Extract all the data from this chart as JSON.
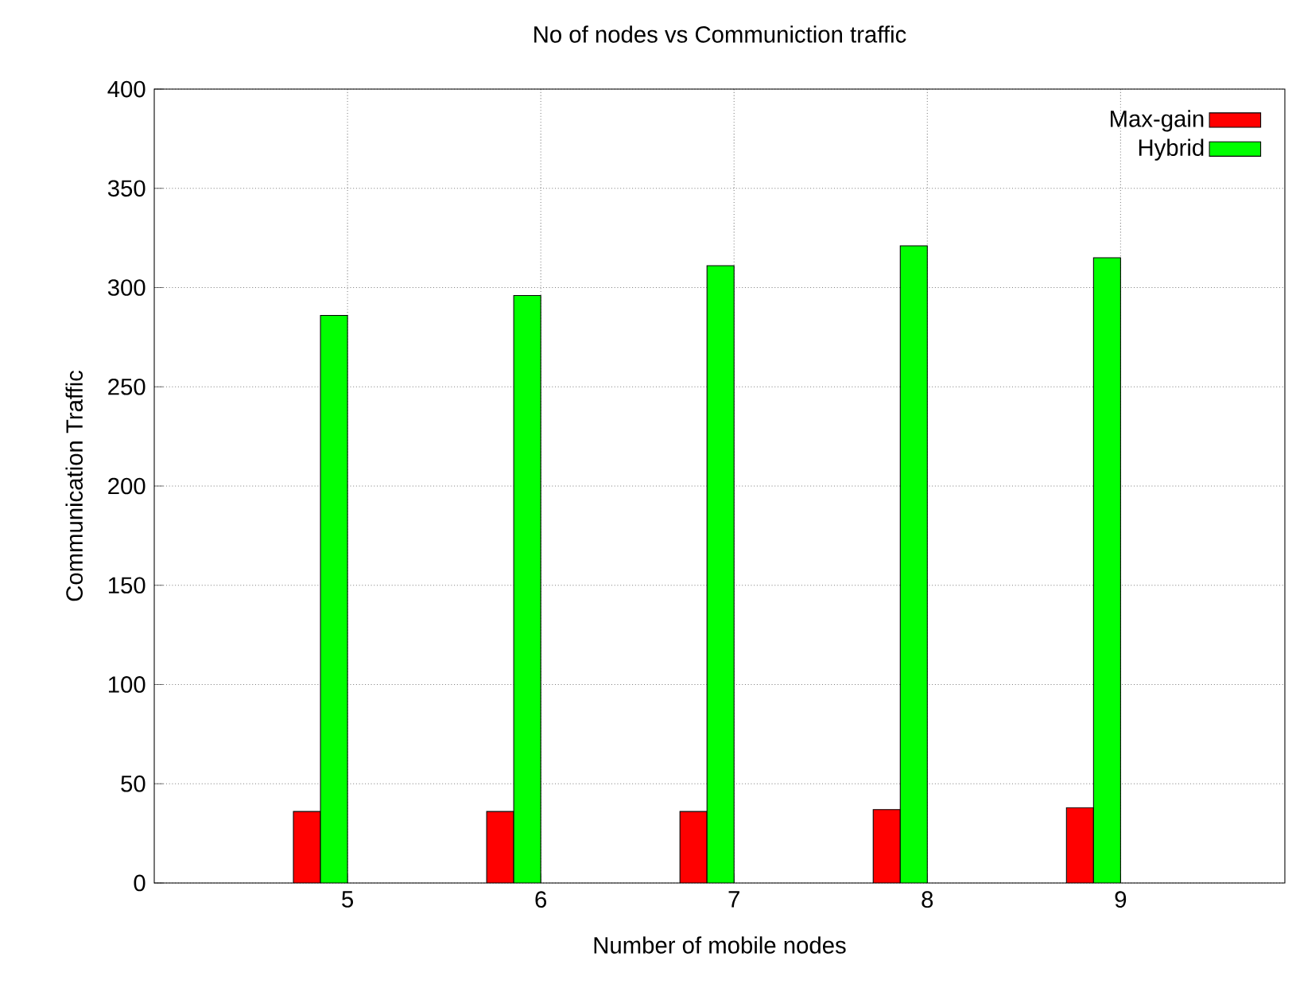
{
  "chart_data": {
    "type": "bar",
    "title": "No of nodes vs Communiction traffic",
    "xlabel": "Number of mobile nodes",
    "ylabel": "Communication Traffic",
    "x": [
      5,
      6,
      7,
      8,
      9
    ],
    "series": [
      {
        "name": "Max-gain",
        "color": "#ff0000",
        "values": [
          36,
          36,
          36,
          37,
          38
        ]
      },
      {
        "name": "Hybrid",
        "color": "#00ff00",
        "values": [
          286,
          296,
          311,
          321,
          315
        ]
      }
    ],
    "xlim": [
      4,
      9.85
    ],
    "xticks": [
      5,
      6,
      7,
      8,
      9
    ],
    "ylim": [
      0,
      400
    ],
    "yticks": [
      0,
      50,
      100,
      150,
      200,
      250,
      300,
      350,
      400
    ],
    "grid": true,
    "legend": "top right"
  }
}
